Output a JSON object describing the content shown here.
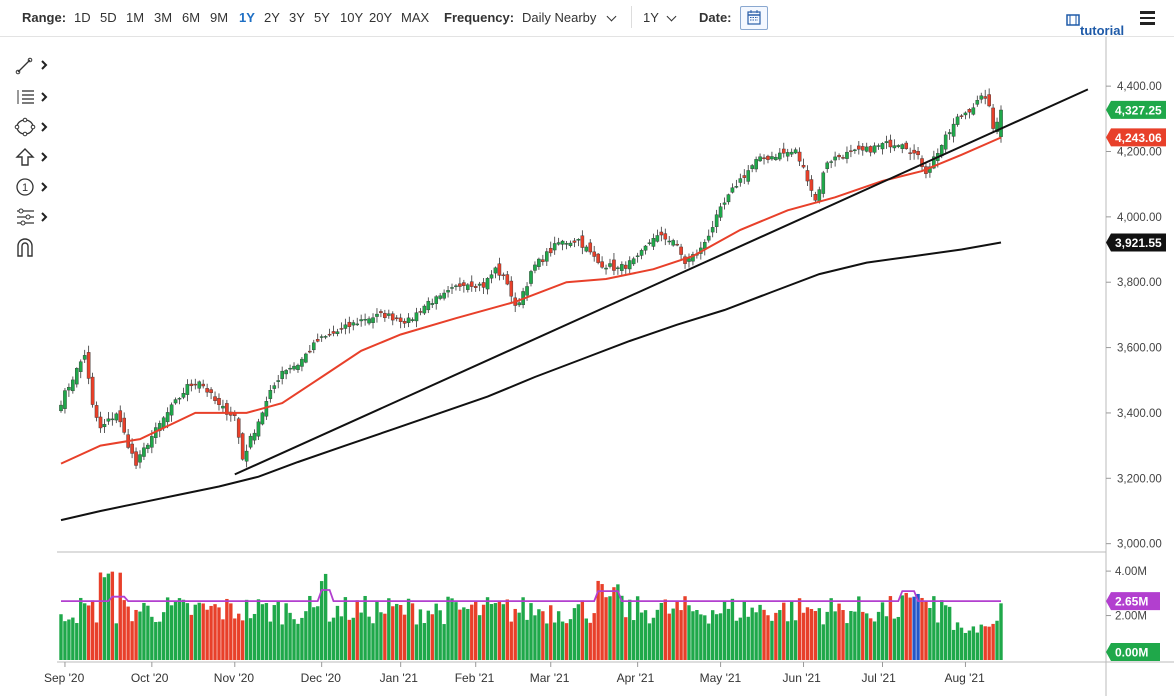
{
  "toolbar": {
    "range_label": "Range:",
    "ranges": [
      "1D",
      "5D",
      "1M",
      "3M",
      "6M",
      "9M",
      "1Y",
      "2Y",
      "3Y",
      "5Y",
      "10Y",
      "20Y",
      "MAX"
    ],
    "active_range": "1Y",
    "frequency_label": "Frequency:",
    "frequency_value": "Daily Nearby",
    "period_value": "1Y",
    "date_label": "Date:",
    "tutorial_label": "tutorial",
    "icons": {
      "calendar": "calendar-icon",
      "tutorial": "film-icon",
      "menu": "hamburger-menu-icon"
    }
  },
  "drawing_tools": [
    "line-tool-icon",
    "fibonacci-tool-icon",
    "shapes-tool-icon",
    "arrow-tool-icon",
    "counter-tool-icon",
    "pattern-tool-icon",
    "magnet-icon"
  ],
  "chart_data": {
    "type": "candlestick",
    "title": "",
    "x_ticks": [
      "Sep '20",
      "Oct '20",
      "Nov '20",
      "Dec '20",
      "Jan '21",
      "Feb '21",
      "Mar '21",
      "Apr '21",
      "May '21",
      "Jun '21",
      "Jul '21",
      "Aug '21"
    ],
    "price_axis": {
      "ticks": [
        "3,000.00",
        "3,200.00",
        "3,400.00",
        "3,600.00",
        "3,800.00",
        "4,000.00",
        "4,200.00",
        "4,400.00"
      ],
      "range": [
        2950,
        4480
      ]
    },
    "volume_axis": {
      "ticks": [
        "2.00M",
        "4.00M"
      ],
      "range": [
        0,
        4.5
      ]
    },
    "price_tags": [
      {
        "label": "4,327.25",
        "value": 4327.25,
        "color": "#1fa84a",
        "desc": "last price"
      },
      {
        "label": "4,243.06",
        "value": 4243.06,
        "color": "#e8402a",
        "desc": "50-day moving average"
      },
      {
        "label": "3,921.55",
        "value": 3921.55,
        "color": "#111111",
        "desc": "200-day moving average"
      }
    ],
    "volume_tags": [
      {
        "label": "2.65M",
        "value": 2.65,
        "color": "#b23fcf"
      },
      {
        "label": "0.00M",
        "value": 0.0,
        "color": "#1fa84a"
      }
    ],
    "series": [
      {
        "kind": "ohlc",
        "close_anchors": [
          [
            0,
            3435
          ],
          [
            6,
            3580
          ],
          [
            8,
            3420
          ],
          [
            10,
            3350
          ],
          [
            14,
            3400
          ],
          [
            19,
            3240
          ],
          [
            22,
            3310
          ],
          [
            27,
            3400
          ],
          [
            32,
            3480
          ],
          [
            35,
            3500
          ],
          [
            40,
            3420
          ],
          [
            44,
            3390
          ],
          [
            46,
            3260
          ],
          [
            48,
            3320
          ],
          [
            53,
            3460
          ],
          [
            56,
            3530
          ],
          [
            60,
            3550
          ],
          [
            65,
            3620
          ],
          [
            72,
            3660
          ],
          [
            77,
            3690
          ],
          [
            82,
            3700
          ],
          [
            88,
            3680
          ],
          [
            93,
            3740
          ],
          [
            96,
            3750
          ],
          [
            102,
            3800
          ],
          [
            107,
            3790
          ],
          [
            110,
            3840
          ],
          [
            113,
            3800
          ],
          [
            115,
            3720
          ],
          [
            120,
            3850
          ],
          [
            126,
            3920
          ],
          [
            131,
            3930
          ],
          [
            136,
            3860
          ],
          [
            141,
            3840
          ],
          [
            146,
            3870
          ],
          [
            150,
            3940
          ],
          [
            155,
            3930
          ],
          [
            158,
            3860
          ],
          [
            162,
            3900
          ],
          [
            167,
            4020
          ],
          [
            171,
            4100
          ],
          [
            176,
            4170
          ],
          [
            181,
            4190
          ],
          [
            186,
            4200
          ],
          [
            189,
            4120
          ],
          [
            191,
            4050
          ],
          [
            194,
            4170
          ],
          [
            198,
            4190
          ],
          [
            203,
            4200
          ],
          [
            208,
            4220
          ],
          [
            213,
            4230
          ],
          [
            217,
            4180
          ],
          [
            219,
            4140
          ],
          [
            223,
            4220
          ],
          [
            227,
            4300
          ],
          [
            231,
            4340
          ],
          [
            234,
            4370
          ],
          [
            235,
            4330
          ],
          [
            236,
            4270
          ],
          [
            238,
            4327
          ]
        ],
        "up_color": "#1fa84a",
        "down_color": "#e8402a"
      },
      {
        "kind": "moving_average",
        "name": "",
        "color": "#e8402a",
        "values": [
          [
            0,
            3245
          ],
          [
            10,
            3300
          ],
          [
            20,
            3320
          ],
          [
            34,
            3400
          ],
          [
            47,
            3400
          ],
          [
            56,
            3430
          ],
          [
            66,
            3510
          ],
          [
            76,
            3590
          ],
          [
            86,
            3640
          ],
          [
            100,
            3690
          ],
          [
            115,
            3740
          ],
          [
            128,
            3800
          ],
          [
            138,
            3810
          ],
          [
            150,
            3840
          ],
          [
            160,
            3880
          ],
          [
            172,
            3960
          ],
          [
            184,
            4020
          ],
          [
            196,
            4060
          ],
          [
            208,
            4110
          ],
          [
            218,
            4140
          ],
          [
            228,
            4190
          ],
          [
            238,
            4243
          ]
        ]
      },
      {
        "kind": "moving_average",
        "name": "",
        "color": "#111111",
        "values": [
          [
            0,
            3072
          ],
          [
            10,
            3100
          ],
          [
            20,
            3125
          ],
          [
            30,
            3150
          ],
          [
            40,
            3175
          ],
          [
            50,
            3205
          ],
          [
            60,
            3250
          ],
          [
            72,
            3300
          ],
          [
            84,
            3350
          ],
          [
            96,
            3400
          ],
          [
            108,
            3450
          ],
          [
            120,
            3510
          ],
          [
            132,
            3565
          ],
          [
            144,
            3620
          ],
          [
            156,
            3670
          ],
          [
            168,
            3715
          ],
          [
            180,
            3770
          ],
          [
            192,
            3825
          ],
          [
            204,
            3860
          ],
          [
            216,
            3880
          ],
          [
            228,
            3900
          ],
          [
            238,
            3921.55
          ]
        ]
      },
      {
        "kind": "trendline",
        "name": "",
        "color": "#111111",
        "points": [
          [
            44,
            3212
          ],
          [
            260,
            4390
          ]
        ]
      }
    ],
    "volume": {
      "up_color": "#1fa84a",
      "down_color": "#e8402a",
      "highlight_color": "#2456c8",
      "avg_color": "#b23fcf",
      "avg_level": 2.65
    },
    "grid": false,
    "legend": "none"
  }
}
